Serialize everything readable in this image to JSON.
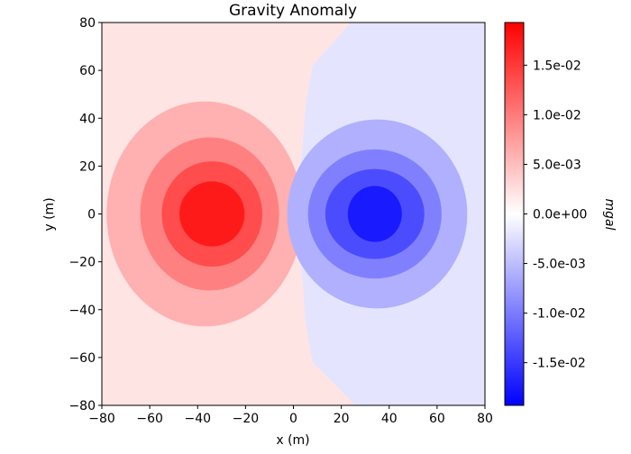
{
  "chart_data": {
    "type": "contourf",
    "title": "Gravity Anomaly",
    "xlabel": "x (m)",
    "ylabel": "y (m)",
    "xlim": [
      -80,
      80
    ],
    "ylim": [
      -80,
      80
    ],
    "xticks": [
      -80,
      -60,
      -40,
      -20,
      0,
      20,
      40,
      60,
      80
    ],
    "yticks": [
      -80,
      -60,
      -40,
      -20,
      0,
      20,
      40,
      60,
      80
    ],
    "grid": false,
    "colormap": "bwr",
    "colorbar": {
      "label": "mgal",
      "range": [
        -0.0193,
        0.0193
      ],
      "ticks": [
        0.015,
        0.01,
        0.005,
        0,
        -0.005,
        -0.01,
        -0.015
      ],
      "tick_labels": [
        "1.5e-02",
        "1.0e-02",
        "5.0e-03",
        "0.0e+00",
        "-5.0e-03",
        "-1.0e-02",
        "-1.5e-02"
      ],
      "placement": "right"
    },
    "levels": [
      -0.0193,
      -0.0155,
      -0.0116,
      -0.0077,
      -0.0039,
      0,
      0.0039,
      0.0077,
      0.0116,
      0.0155,
      0.0193
    ],
    "background": {
      "positive_color": "#ffe4e4",
      "negative_color": "#e4e4ff",
      "zero_line": [
        [
          24,
          80
        ],
        [
          8,
          62
        ],
        [
          5,
          45
        ],
        [
          4,
          30
        ],
        [
          2,
          12
        ],
        [
          2,
          0
        ],
        [
          2,
          -12
        ],
        [
          4,
          -30
        ],
        [
          5,
          -45
        ],
        [
          8,
          -62
        ],
        [
          26,
          -80
        ]
      ]
    },
    "anomalies": [
      {
        "name": "positive",
        "center": [
          -34,
          0
        ],
        "contours": [
          {
            "level": 0.0039,
            "cx": -37,
            "rx": 41,
            "ry": 47,
            "color": "#ffb0b0"
          },
          {
            "level": 0.0077,
            "cx": -35,
            "rx": 29,
            "ry": 32,
            "color": "#ff8080"
          },
          {
            "level": 0.0116,
            "cx": -34,
            "rx": 21,
            "ry": 22,
            "color": "#ff4c4c"
          },
          {
            "level": 0.0155,
            "cx": -34,
            "rx": 13.6,
            "ry": 13.6,
            "color": "#ff1a1a"
          }
        ]
      },
      {
        "name": "negative",
        "center": [
          34,
          0
        ],
        "contours": [
          {
            "level": -0.0039,
            "cx": 35,
            "rx": 37.6,
            "ry": 39.5,
            "color": "#b0b0ff"
          },
          {
            "level": -0.0077,
            "cx": 34,
            "rx": 27.9,
            "ry": 27,
            "color": "#8080ff"
          },
          {
            "level": -0.0116,
            "cx": 34,
            "rx": 20.7,
            "ry": 18.8,
            "color": "#4c4cff"
          },
          {
            "level": -0.0155,
            "cx": 34,
            "rx": 11.3,
            "ry": 11.7,
            "color": "#1a1aff"
          }
        ]
      }
    ]
  }
}
